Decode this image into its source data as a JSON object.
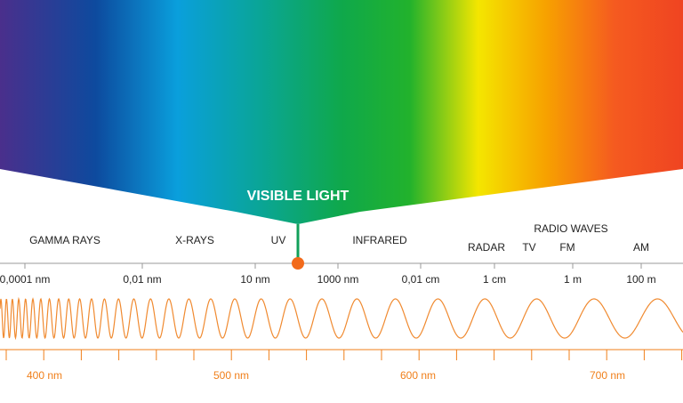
{
  "title": "VISIBLE LIGHT",
  "bands": [
    "GAMMA RAYS",
    "X-RAYS",
    "UV",
    "INFRARED",
    "RADIO WAVES",
    "RADAR",
    "TV",
    "FM",
    "AM"
  ],
  "scale": [
    "0,0001 nm",
    "0,01 nm",
    "10 nm",
    "1000 nm",
    "0,01 cm",
    "1 cm",
    "1 m",
    "100 m"
  ],
  "visible_scale": [
    "400 nm",
    "500 nm",
    "600 nm",
    "700 nm"
  ]
}
